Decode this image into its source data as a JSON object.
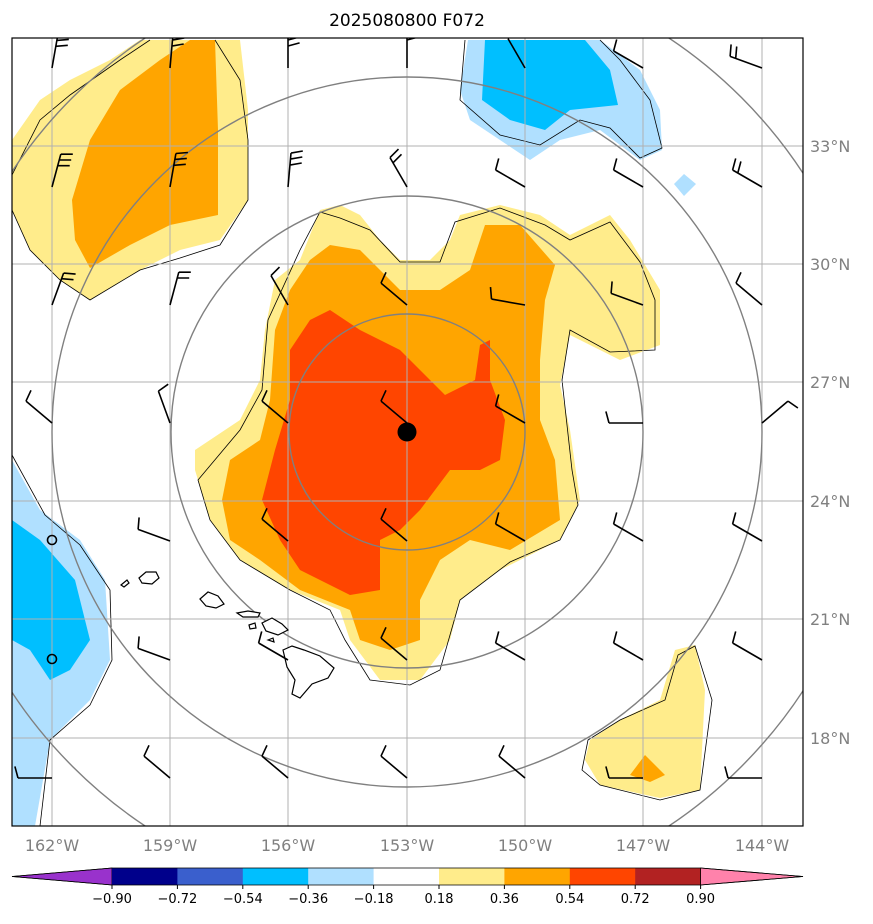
{
  "title": "2025080800 F072",
  "x_ticks": [
    "162°W",
    "159°W",
    "156°W",
    "153°W",
    "150°W",
    "147°W",
    "144°W"
  ],
  "y_ticks": [
    "33°N",
    "30°N",
    "27°N",
    "24°N",
    "21°N",
    "18°N"
  ],
  "colorbar": {
    "labels": [
      "−0.90",
      "−0.72",
      "−0.54",
      "−0.36",
      "−0.18",
      "0.18",
      "0.36",
      "0.54",
      "0.72",
      "0.90"
    ],
    "colors": [
      "#9932CC",
      "#00008B",
      "#3A5FCD",
      "#00BFFF",
      "#B0E0FF",
      "#FFFFFF",
      "#FFEC8B",
      "#FFA500",
      "#FF4500",
      "#B22222",
      "#FF82AB"
    ],
    "extend": "both"
  },
  "map": {
    "lon_range": [
      -163,
      -143
    ],
    "lat_range": [
      15.3,
      35.5
    ],
    "center_marker": {
      "lon": -153,
      "lat": 25.8
    },
    "range_rings": true,
    "wind_barbs": true
  },
  "colors": {
    "c036": "#FFEC8B",
    "c054": "#FFA500",
    "c072": "#FF4500",
    "cneg36": "#B0E0FF",
    "cneg54": "#00BFFF",
    "grid": "#B0B0B0",
    "ring": "#808080"
  }
}
